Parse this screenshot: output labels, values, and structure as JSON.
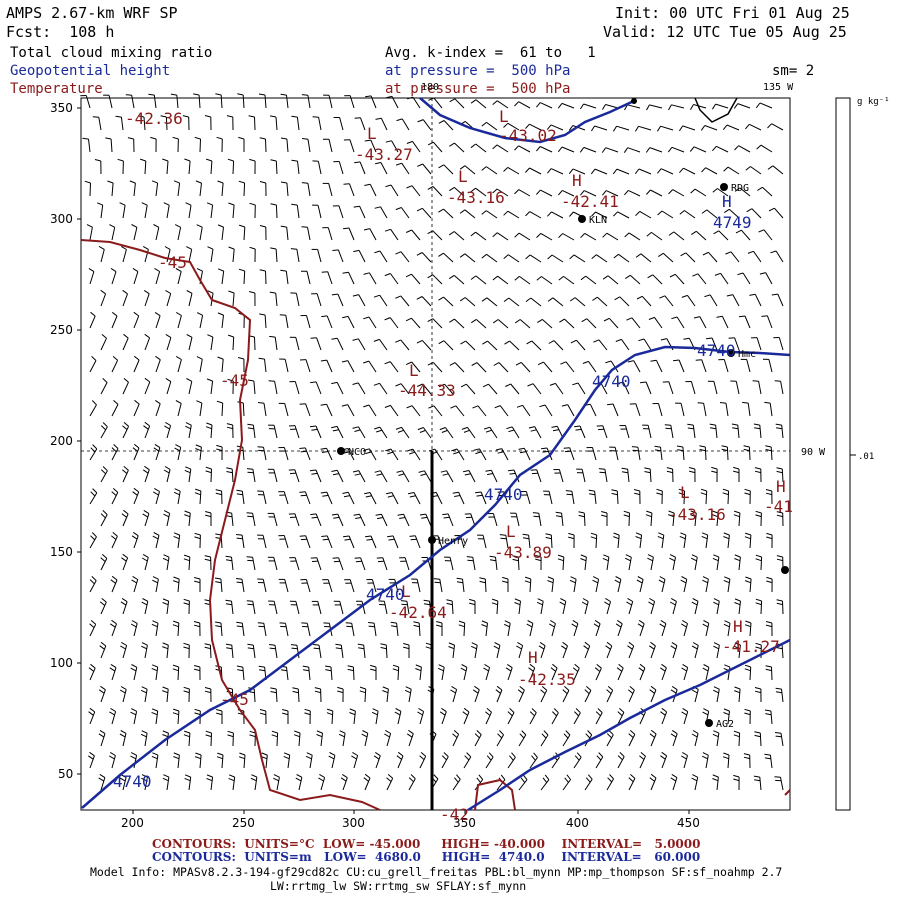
{
  "header": {
    "model_title": "AMPS 2.67-km WRF SP",
    "forecast_hour": "Fcst:  108 h",
    "init_time": "Init: 00 UTC Fri 01 Aug 25",
    "valid_time": "Valid: 12 UTC Tue 05 Aug 25",
    "field1": "Total cloud mixing ratio",
    "field2": "Geopotential height",
    "field3": "Temperature",
    "avg_k_index": "Avg. k-index =  61 to   1",
    "pressure1": "at pressure =  500 hPa",
    "pressure2": "at pressure =  500 hPa",
    "smoothing": "sm= 2"
  },
  "axes": {
    "x_ticks": [
      "200",
      "250",
      "300",
      "350",
      "400",
      "450"
    ],
    "y_ticks": [
      "50",
      "100",
      "150",
      "200",
      "250",
      "300",
      "350"
    ],
    "lon_top_180": "180",
    "lon_top_135w": "135 W",
    "lon_right_90w": "90 W"
  },
  "colorbar": {
    "unit": "g kg⁻¹",
    "label": ".01"
  },
  "stations": [
    {
      "name": "NCO"
    },
    {
      "name": "Henry"
    },
    {
      "name": "KLN"
    },
    {
      "name": "RDG"
    },
    {
      "name": "Hmc"
    },
    {
      "name": "AG2"
    }
  ],
  "pressure_systems": [
    {
      "letter": "L",
      "value": "-43.02"
    },
    {
      "letter": "L",
      "value": "-43.27"
    },
    {
      "letter": "L",
      "value": "-43.16"
    },
    {
      "letter": "H",
      "value": "-42.41"
    },
    {
      "letter": "L",
      "value": "-44.33"
    },
    {
      "letter": "L",
      "value": "-43.16"
    },
    {
      "letter": "L",
      "value": "-43.89"
    },
    {
      "letter": "L",
      "value": "-42.64"
    },
    {
      "letter": "H",
      "value": "-42.35"
    },
    {
      "letter": "H",
      "value": "-41.27"
    },
    {
      "letter": "H",
      "value": "-41"
    }
  ],
  "temp_labels": [
    "-42.36",
    "-45",
    "-45",
    "-45",
    "-42"
  ],
  "height_labels": [
    "4749",
    "4740",
    "4740",
    "4740",
    "4740",
    "4740"
  ],
  "footer": {
    "red_contours": "CONTOURS:  UNITS=°C  LOW= -45.000     HIGH= -40.000    INTERVAL=   5.0000",
    "blue_contours": "CONTOURS:  UNITS=m   LOW=  4680.0     HIGH=  4740.0    INTERVAL=   60.000",
    "model_info": "Model Info: MPASv8.2.3-194-gf29cd82c CU:cu_grell_freitas PBL:bl_mynn MP:mp_thompson SF:sf_noahmp 2.7",
    "model_info2": "LW:rrtmg_lw SW:rrtmg_sw SFLAY:sf_mynn"
  },
  "colors": {
    "height_contour": "#1a2a9a",
    "temp_contour": "#8b1a1a",
    "barb": "#000000"
  }
}
